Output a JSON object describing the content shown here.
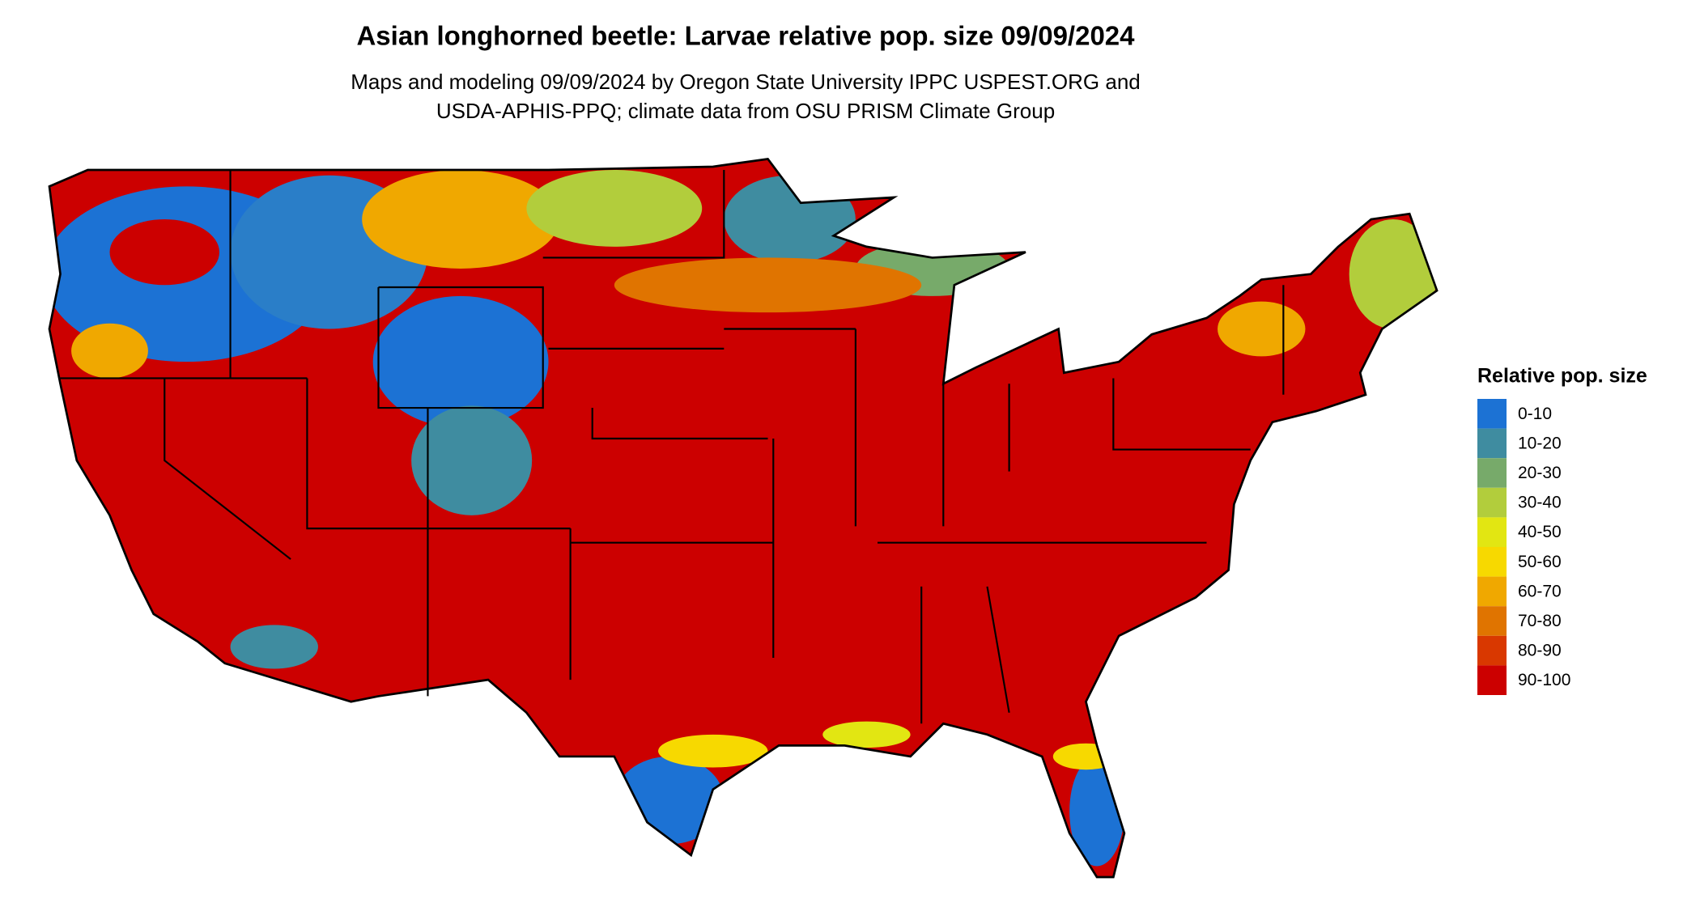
{
  "header": {
    "title": "Asian longhorned beetle: Larvae relative pop. size 09/09/2024",
    "subtitle": [
      "Maps and modeling 09/09/2024 by Oregon State University IPPC USPEST.ORG and",
      "USDA-APHIS-PPQ; climate data from OSU PRISM Climate Group"
    ]
  },
  "legend": {
    "title": "Relative pop. size",
    "items": [
      {
        "label": "0-10",
        "color": "#1c72d4"
      },
      {
        "label": "10-20",
        "color": "#3f8ca0"
      },
      {
        "label": "20-30",
        "color": "#77aa6a"
      },
      {
        "label": "30-40",
        "color": "#b2cd3c"
      },
      {
        "label": "40-50",
        "color": "#e2e612"
      },
      {
        "label": "50-60",
        "color": "#f7d900"
      },
      {
        "label": "60-70",
        "color": "#f0a800"
      },
      {
        "label": "70-80",
        "color": "#e07400"
      },
      {
        "label": "80-90",
        "color": "#d93800"
      },
      {
        "label": "90-100",
        "color": "#cc0000"
      }
    ]
  }
}
